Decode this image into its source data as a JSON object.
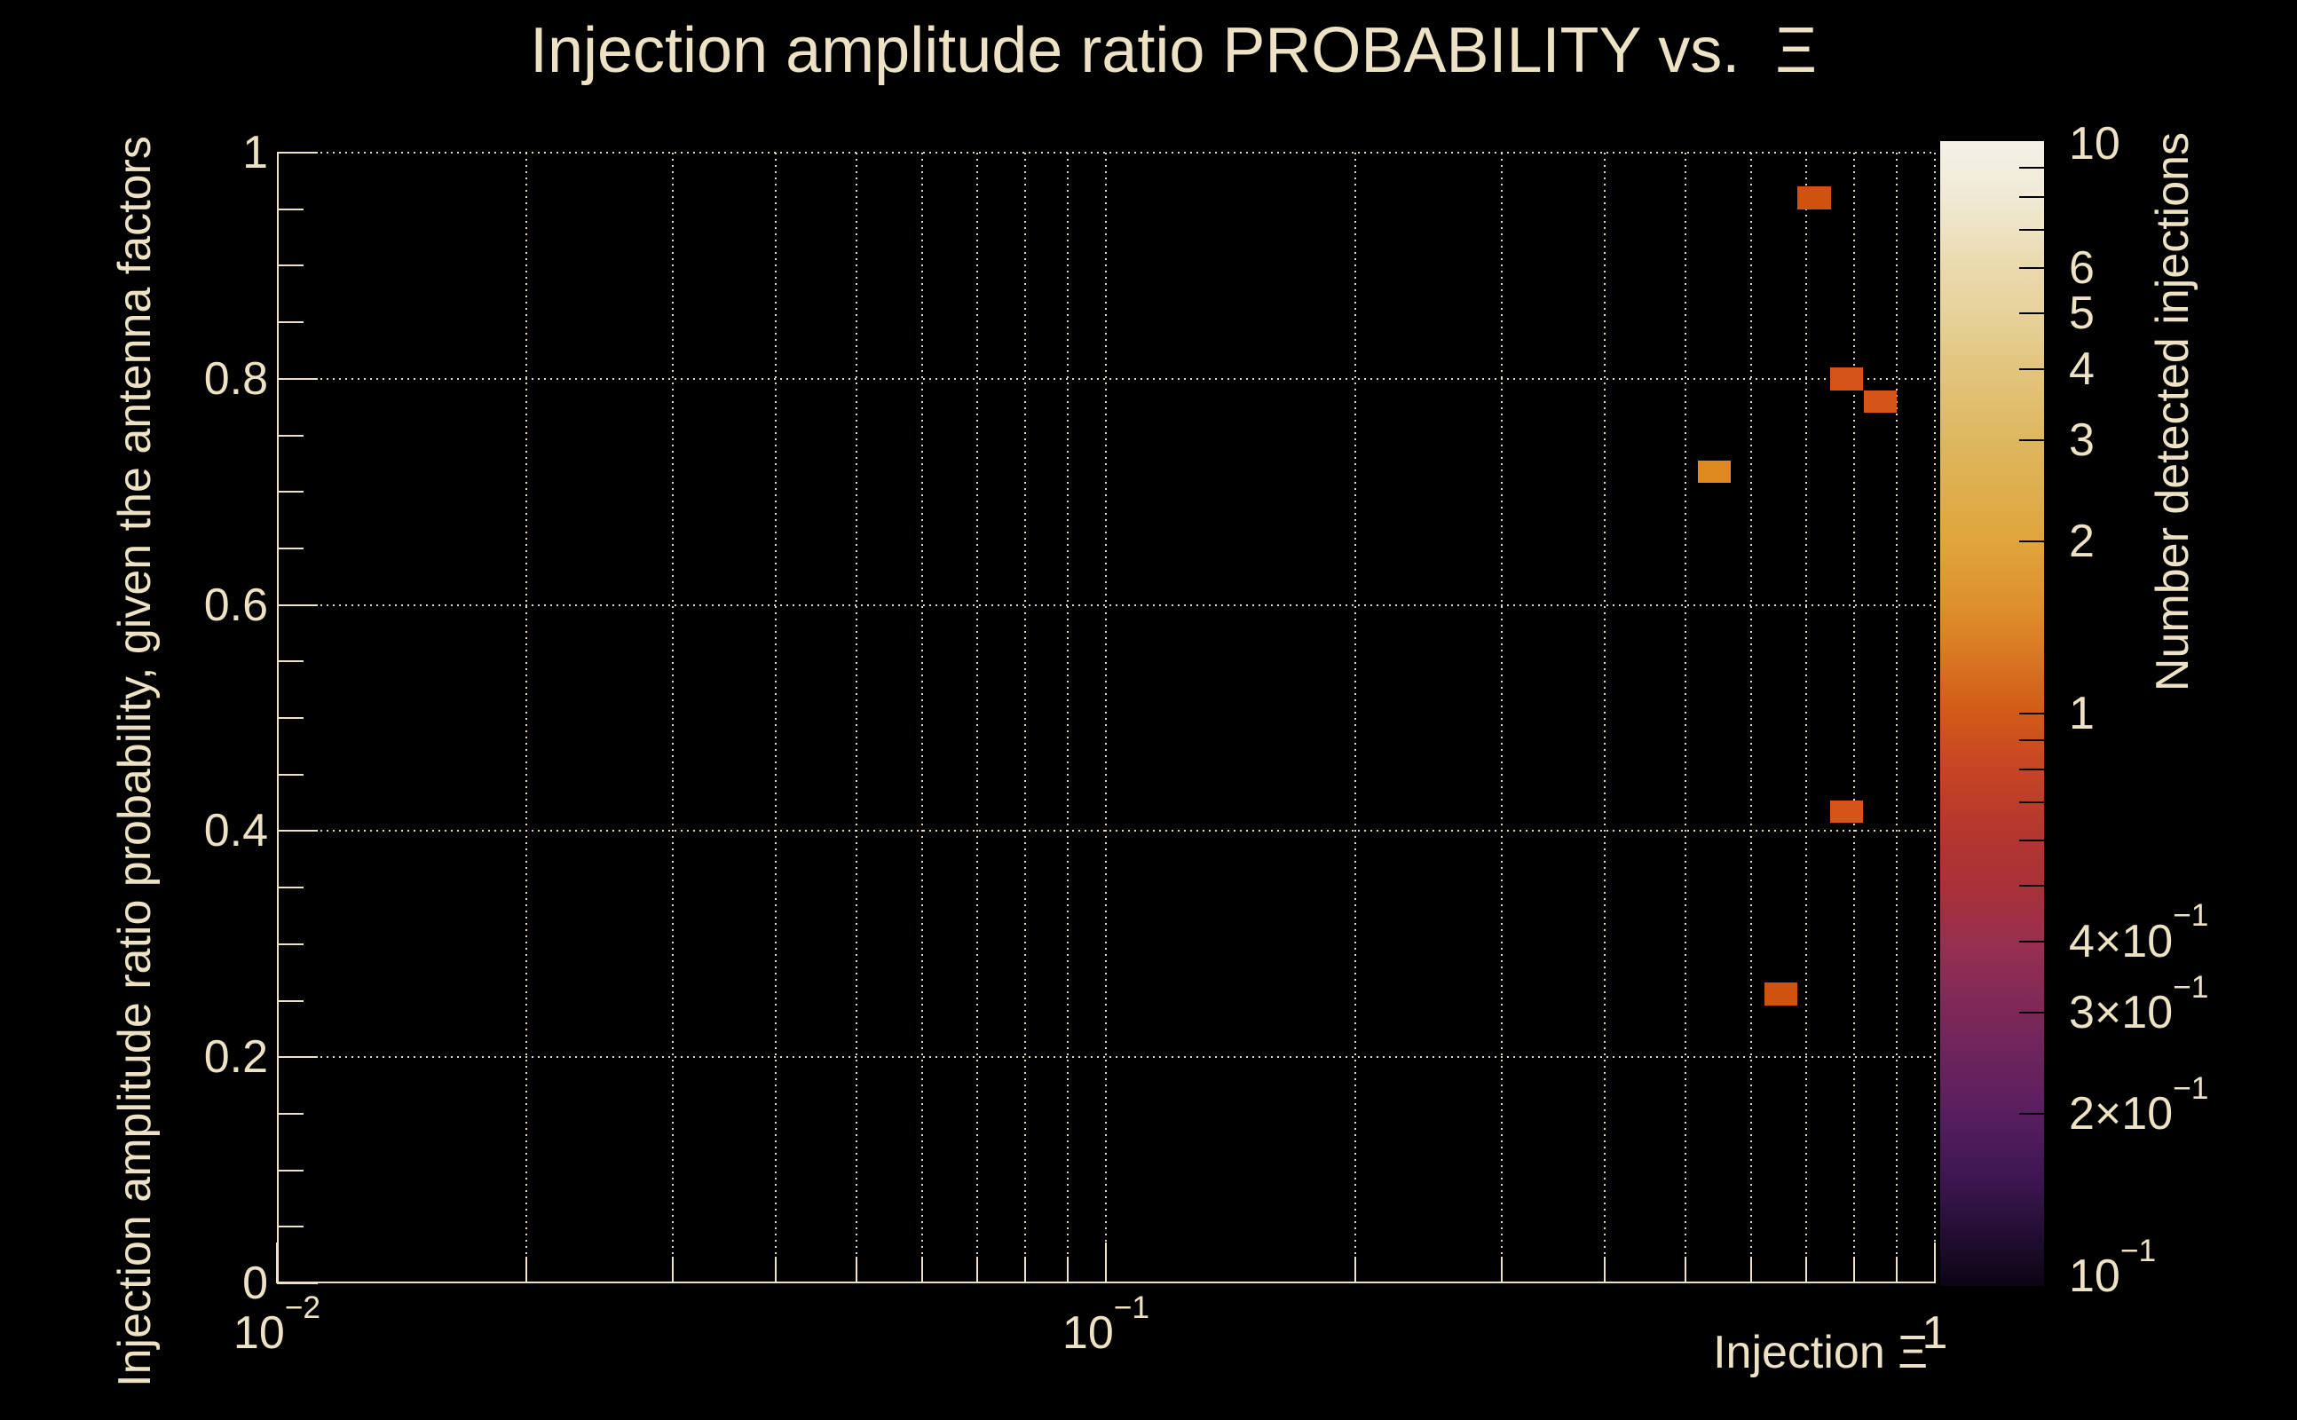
{
  "title": "Injection amplitude ratio PROBABILITY vs.  Ξ",
  "colors": {
    "background": "#000000",
    "text": "#EDE3C4",
    "grid": "#EDE3C4",
    "colorbar_tick": "#000000",
    "bin_count1": "#d0520f",
    "bin_count2": "#de8a20"
  },
  "x_axis": {
    "title": "Injection Ξ",
    "scale": "log",
    "min": 0.01,
    "max": 1,
    "major_ticks": [
      {
        "value": 0.01,
        "label": "10^-2"
      },
      {
        "value": 0.1,
        "label": "10^-1"
      },
      {
        "value": 1,
        "label": "1"
      }
    ],
    "minor_tick_values": [
      0.02,
      0.03,
      0.04,
      0.05,
      0.06,
      0.07,
      0.08,
      0.09,
      0.2,
      0.3,
      0.4,
      0.5,
      0.6,
      0.7,
      0.8,
      0.9
    ],
    "grid_values": [
      0.02,
      0.03,
      0.04,
      0.05,
      0.06,
      0.07,
      0.08,
      0.09,
      0.1,
      0.2,
      0.3,
      0.4,
      0.5,
      0.6,
      0.7,
      0.8,
      0.9,
      1.0
    ]
  },
  "y_axis": {
    "title": "Injection amplitude ratio probability, given the antenna factors",
    "scale": "linear",
    "min": 0,
    "max": 1,
    "major_ticks": [
      {
        "value": 0,
        "label": "0"
      },
      {
        "value": 0.2,
        "label": "0.2"
      },
      {
        "value": 0.4,
        "label": "0.4"
      },
      {
        "value": 0.6,
        "label": "0.6"
      },
      {
        "value": 0.8,
        "label": "0.8"
      },
      {
        "value": 1,
        "label": "1"
      }
    ],
    "minor_tick_values": [
      0.05,
      0.1,
      0.15,
      0.25,
      0.3,
      0.35,
      0.45,
      0.5,
      0.55,
      0.65,
      0.7,
      0.75,
      0.85,
      0.9,
      0.95
    ],
    "grid_values": [
      0.2,
      0.4,
      0.6,
      0.8,
      1.0
    ]
  },
  "colorbar": {
    "title": "Number detected injections",
    "scale": "log",
    "min": 0.1,
    "max": 10,
    "labels": [
      {
        "value": 10,
        "label": "10"
      },
      {
        "value": 6,
        "label": "6"
      },
      {
        "value": 5,
        "label": "5"
      },
      {
        "value": 4,
        "label": "4"
      },
      {
        "value": 3,
        "label": "3"
      },
      {
        "value": 2,
        "label": "2"
      },
      {
        "value": 1,
        "label": "1"
      },
      {
        "value": 0.4,
        "label": "4×10^-1"
      },
      {
        "value": 0.3,
        "label": "3×10^-1"
      },
      {
        "value": 0.2,
        "label": "2×10^-1"
      },
      {
        "value": 0.1,
        "label": "10^-1"
      }
    ],
    "tick_values": [
      9,
      8,
      7,
      6,
      5,
      4,
      3,
      2,
      1,
      0.9,
      0.8,
      0.7,
      0.6,
      0.5,
      0.4,
      0.3,
      0.2
    ],
    "gradient_stops": [
      {
        "z": 10,
        "color": "#f4f1e9"
      },
      {
        "z": 8,
        "color": "#f0ead5"
      },
      {
        "z": 6,
        "color": "#ead9ad"
      },
      {
        "z": 5,
        "color": "#e6d29c"
      },
      {
        "z": 4,
        "color": "#e2c57e"
      },
      {
        "z": 3,
        "color": "#ddb75f"
      },
      {
        "z": 2,
        "color": "#e0a53c"
      },
      {
        "z": 1.5,
        "color": "#dd8d2b"
      },
      {
        "z": 1,
        "color": "#d25a18"
      },
      {
        "z": 0.8,
        "color": "#c64425"
      },
      {
        "z": 0.6,
        "color": "#b23530"
      },
      {
        "z": 0.5,
        "color": "#a93138"
      },
      {
        "z": 0.4,
        "color": "#983050"
      },
      {
        "z": 0.3,
        "color": "#7c2858"
      },
      {
        "z": 0.2,
        "color": "#581f60"
      },
      {
        "z": 0.15,
        "color": "#3a164e"
      },
      {
        "z": 0.1,
        "color": "#0b0514"
      }
    ]
  },
  "chart_data": {
    "type": "heatmap",
    "title": "Injection amplitude ratio PROBABILITY vs.  Ξ",
    "xlabel": "Injection Ξ",
    "ylabel": "Injection amplitude ratio probability, given the antenna factors",
    "zlabel": "Number detected injections",
    "x_scale": "log",
    "xlim": [
      0.01,
      1
    ],
    "ylim": [
      0,
      1
    ],
    "zlim": [
      0.1,
      10
    ],
    "z_scale": "log",
    "grid": true,
    "x_bin_width_dex": 0.04,
    "y_bin_width": 0.02,
    "points": [
      {
        "x": 0.715,
        "y": 0.96,
        "z": 1,
        "color": "#d0520f"
      },
      {
        "x": 0.783,
        "y": 0.8,
        "z": 1,
        "color": "#d4541a"
      },
      {
        "x": 0.859,
        "y": 0.78,
        "z": 1,
        "color": "#d4541a"
      },
      {
        "x": 0.542,
        "y": 0.718,
        "z": 1.5,
        "color": "#de8a20"
      },
      {
        "x": 0.783,
        "y": 0.417,
        "z": 1,
        "color": "#d4541a"
      },
      {
        "x": 0.652,
        "y": 0.256,
        "z": 1,
        "color": "#d0520f"
      }
    ]
  }
}
